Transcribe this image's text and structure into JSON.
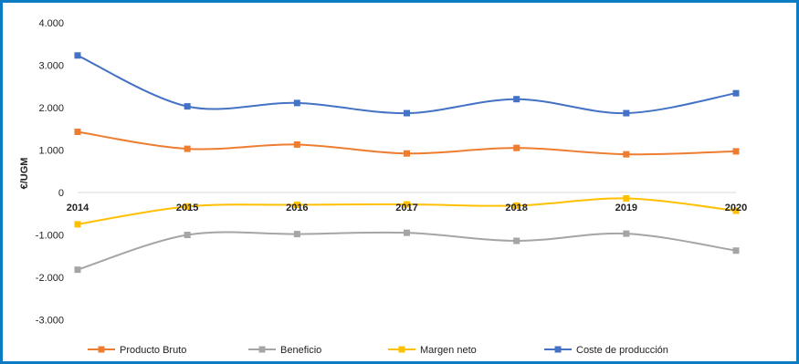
{
  "chart_data": {
    "type": "line",
    "title": "",
    "xlabel": "",
    "ylabel": "€/UGM",
    "categories": [
      "2014",
      "2015",
      "2016",
      "2017",
      "2018",
      "2019",
      "2020"
    ],
    "y_ticks": [
      "4.000",
      "3.000",
      "2.000",
      "1.000",
      "0",
      "-1.000",
      "-2.000",
      "-3.000"
    ],
    "y_tick_values": [
      4000,
      3000,
      2000,
      1000,
      0,
      -1000,
      -2000,
      -3000
    ],
    "ylim": [
      -3800,
      4000
    ],
    "grid": false,
    "legend_position": "bottom",
    "series": [
      {
        "name": "Producto Bruto",
        "color": "#ED7D31",
        "values": [
          1430,
          1030,
          1130,
          920,
          1050,
          900,
          970
        ]
      },
      {
        "name": "Beneficio",
        "color": "#A5A5A5",
        "values": [
          -1820,
          -1000,
          -980,
          -950,
          -1140,
          -970,
          -1370
        ]
      },
      {
        "name": "Margen neto",
        "color": "#FFC000",
        "values": [
          -750,
          -330,
          -290,
          -280,
          -310,
          -140,
          -430
        ]
      },
      {
        "name": "Coste de producción",
        "color": "#4472C4",
        "values": [
          3230,
          2030,
          2110,
          1870,
          2200,
          1870,
          2340
        ]
      }
    ]
  }
}
